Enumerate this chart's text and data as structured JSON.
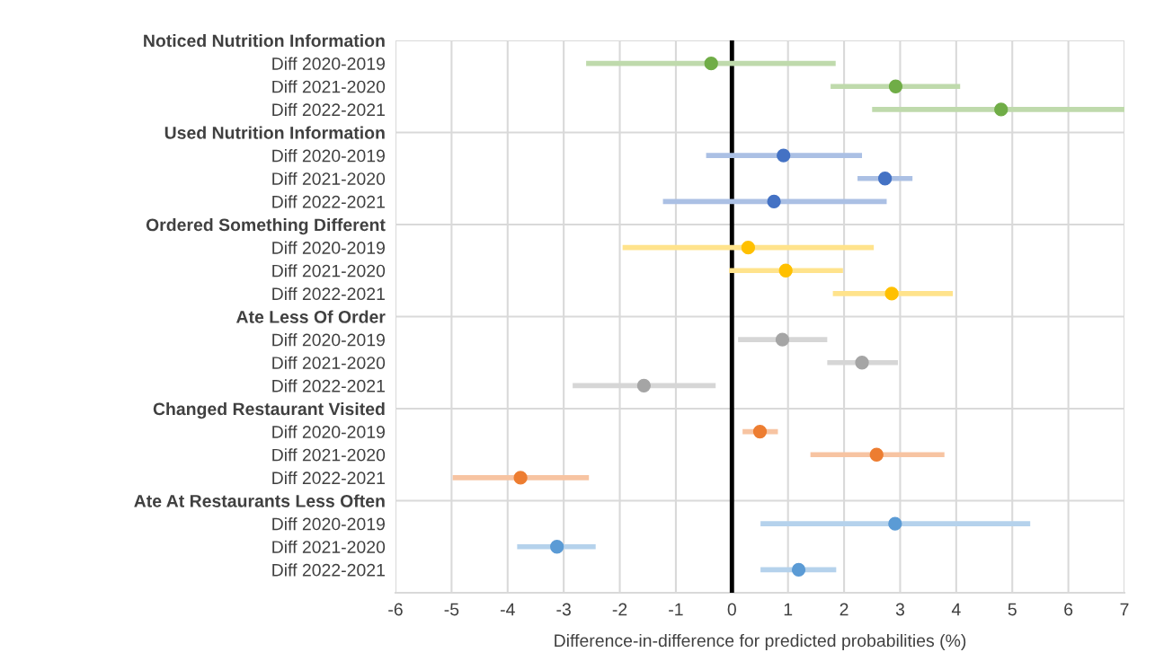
{
  "chart_data": {
    "type": "scatter",
    "orientation": "horizontal",
    "xlabel": "Difference-in-difference for predicted probabilities (%)",
    "categories": [
      "Noticed Nutrition Information",
      "Diff 2020-2019",
      "Diff 2021-2020",
      "Diff 2022-2021",
      "Used Nutrition Information",
      "Diff 2020-2019",
      "Diff 2021-2020",
      "Diff 2022-2021",
      "Ordered Something Different",
      "Diff 2020-2019",
      "Diff 2021-2020",
      "Diff 2022-2021",
      "Ate Less Of Order",
      "Diff 2020-2019",
      "Diff 2021-2020",
      "Diff 2022-2021",
      "Changed Restaurant Visited",
      "Diff 2020-2019",
      "Diff 2021-2020",
      "Diff 2022-2021",
      "Ate At Restaurants Less Often",
      "Diff 2020-2019",
      "Diff 2021-2020",
      "Diff 2022-2021"
    ],
    "series": [
      {
        "color": "#70ad47",
        "values": [
          null,
          -0.37,
          2.92,
          4.8,
          null,
          null,
          null,
          null,
          null,
          null,
          null,
          null,
          null,
          null,
          null,
          null,
          null,
          null,
          null,
          null,
          null,
          null,
          null,
          null
        ],
        "errors": [
          null,
          [
            -2.6,
            1.85
          ],
          [
            1.76,
            4.07
          ],
          [
            2.5,
            7.0
          ],
          null,
          null,
          null,
          null,
          null,
          null,
          null,
          null,
          null,
          null,
          null,
          null,
          null,
          null,
          null,
          null,
          null,
          null,
          null,
          null
        ]
      },
      {
        "color": "#4472c4",
        "values": [
          null,
          null,
          null,
          null,
          null,
          0.92,
          2.73,
          0.75,
          null,
          null,
          null,
          null,
          null,
          null,
          null,
          null,
          null,
          null,
          null,
          null,
          null,
          null,
          null,
          null
        ],
        "errors": [
          null,
          null,
          null,
          null,
          null,
          [
            -0.46,
            2.32
          ],
          [
            2.24,
            3.22
          ],
          [
            -1.23,
            2.76
          ],
          null,
          null,
          null,
          null,
          null,
          null,
          null,
          null,
          null,
          null,
          null,
          null,
          null,
          null,
          null,
          null
        ]
      },
      {
        "color": "#ffc000",
        "values": [
          null,
          null,
          null,
          null,
          null,
          null,
          null,
          null,
          null,
          0.29,
          0.96,
          2.85,
          null,
          null,
          null,
          null,
          null,
          null,
          null,
          null,
          null,
          null,
          null,
          null
        ],
        "errors": [
          null,
          null,
          null,
          null,
          null,
          null,
          null,
          null,
          null,
          [
            -1.95,
            2.53
          ],
          [
            -0.05,
            1.98
          ],
          [
            1.8,
            3.94
          ],
          null,
          null,
          null,
          null,
          null,
          null,
          null,
          null,
          null,
          null,
          null,
          null
        ]
      },
      {
        "color": "#a5a5a5",
        "values": [
          null,
          null,
          null,
          null,
          null,
          null,
          null,
          null,
          null,
          null,
          null,
          null,
          null,
          0.9,
          2.32,
          -1.57,
          null,
          null,
          null,
          null,
          null,
          null,
          null,
          null
        ],
        "errors": [
          null,
          null,
          null,
          null,
          null,
          null,
          null,
          null,
          null,
          null,
          null,
          null,
          null,
          [
            0.11,
            1.7
          ],
          [
            1.7,
            2.96
          ],
          [
            -2.84,
            -0.29
          ],
          null,
          null,
          null,
          null,
          null,
          null,
          null,
          null
        ]
      },
      {
        "color": "#ed7d31",
        "values": [
          null,
          null,
          null,
          null,
          null,
          null,
          null,
          null,
          null,
          null,
          null,
          null,
          null,
          null,
          null,
          null,
          null,
          0.5,
          2.58,
          -3.77,
          null,
          null,
          null,
          null
        ],
        "errors": [
          null,
          null,
          null,
          null,
          null,
          null,
          null,
          null,
          null,
          null,
          null,
          null,
          null,
          null,
          null,
          null,
          null,
          [
            0.19,
            0.82
          ],
          [
            1.4,
            3.79
          ],
          [
            -4.98,
            -2.55
          ],
          null,
          null,
          null,
          null
        ]
      },
      {
        "color": "#5b9bd5",
        "values": [
          null,
          null,
          null,
          null,
          null,
          null,
          null,
          null,
          null,
          null,
          null,
          null,
          null,
          null,
          null,
          null,
          null,
          null,
          null,
          null,
          null,
          2.91,
          -3.12,
          1.19
        ],
        "errors": [
          null,
          null,
          null,
          null,
          null,
          null,
          null,
          null,
          null,
          null,
          null,
          null,
          null,
          null,
          null,
          null,
          null,
          null,
          null,
          null,
          null,
          [
            0.51,
            5.32
          ],
          [
            -3.83,
            -2.43
          ],
          [
            0.51,
            1.86
          ]
        ]
      }
    ],
    "xlim": [
      -6,
      7
    ],
    "xticks": [
      -6,
      -5,
      -4,
      -3,
      -2,
      -1,
      0,
      1,
      2,
      3,
      4,
      5,
      6,
      7
    ],
    "ref_lines": [
      {
        "axis": "x",
        "value": 0,
        "color": "#000000"
      }
    ],
    "grid": "x",
    "marker": "circle",
    "legend": false
  }
}
